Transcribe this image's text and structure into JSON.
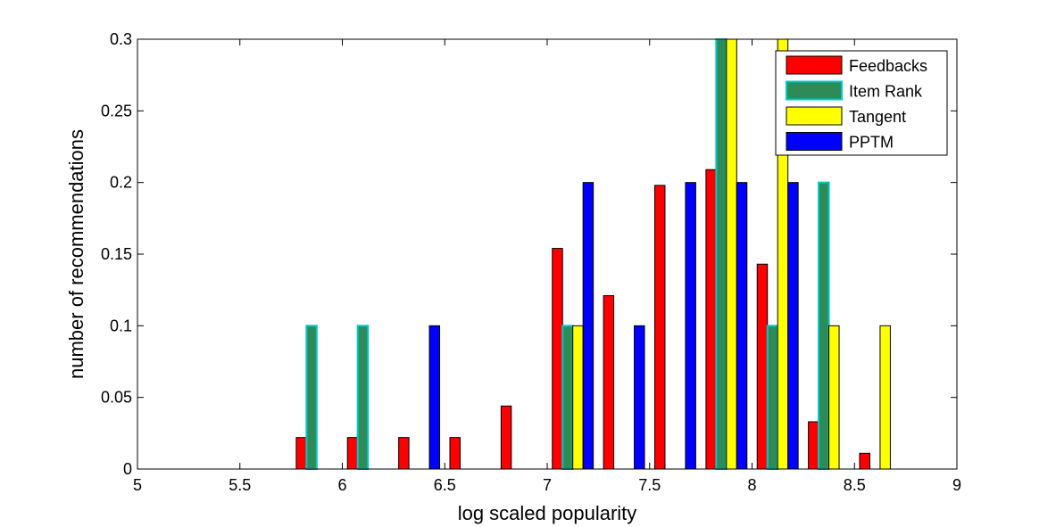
{
  "chart_data": {
    "type": "bar",
    "xlabel": "log scaled popularity",
    "ylabel": "number of recommendations",
    "xlim": [
      5,
      9
    ],
    "ylim": [
      0,
      0.3
    ],
    "x_ticks": [
      "5",
      "5.5",
      "6",
      "6.5",
      "7",
      "7.5",
      "8",
      "8.5",
      "9"
    ],
    "y_ticks": [
      "0",
      "0.05",
      "0.1",
      "0.15",
      "0.2",
      "0.25",
      "0.3"
    ],
    "grid": false,
    "legend_position": "top-right",
    "bin_centers": [
      5.125,
      5.375,
      5.625,
      5.875,
      6.125,
      6.375,
      6.625,
      6.875,
      7.125,
      7.375,
      7.625,
      7.875,
      8.125,
      8.375,
      8.625,
      8.875
    ],
    "series": [
      {
        "name": "Feedbacks",
        "color": "#ff0000",
        "values": [
          0,
          0,
          0,
          0.022,
          0.022,
          0.022,
          0.022,
          0.044,
          0.154,
          0.121,
          0.198,
          0.209,
          0.143,
          0.033,
          0.011,
          0
        ]
      },
      {
        "name": "Item Rank",
        "color": "#2e8b57",
        "edge": "#00c8c8",
        "values": [
          0,
          0,
          0,
          0.1,
          0.1,
          0,
          0,
          0,
          0.1,
          0,
          0,
          0.3,
          0.1,
          0.2,
          0,
          0
        ]
      },
      {
        "name": "Tangent",
        "color": "#ffff00",
        "values": [
          0,
          0,
          0,
          0,
          0,
          0,
          0,
          0,
          0.1,
          0,
          0,
          0.3,
          0.3,
          0.1,
          0.1,
          0
        ]
      },
      {
        "name": "PPTM",
        "color": "#0000ff",
        "values": [
          0,
          0,
          0,
          0,
          0,
          0.1,
          0,
          0,
          0.2,
          0.1,
          0.2,
          0.2,
          0.2,
          0,
          0,
          0
        ]
      }
    ]
  }
}
